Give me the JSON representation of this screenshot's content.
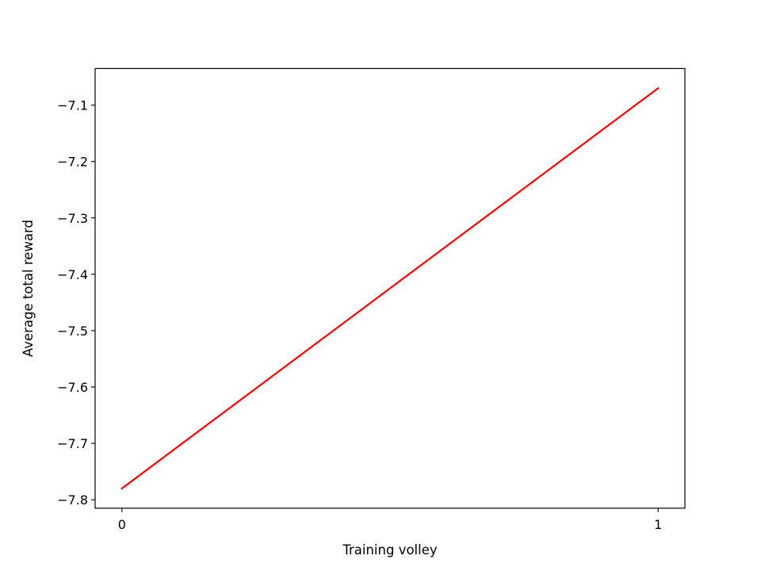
{
  "chart_data": {
    "type": "line",
    "title": "",
    "xlabel": "Training volley",
    "ylabel": "Average total reward",
    "xlim": [
      -0.05,
      1.05
    ],
    "ylim": [
      -7.815,
      -7.035
    ],
    "xticks": [
      0,
      1
    ],
    "xtick_labels": [
      "0",
      "1"
    ],
    "yticks": [
      -7.8,
      -7.7,
      -7.6,
      -7.5,
      -7.4,
      -7.3,
      -7.2,
      -7.1
    ],
    "ytick_labels": [
      "−7.8",
      "−7.7",
      "−7.6",
      "−7.5",
      "−7.4",
      "−7.3",
      "−7.2",
      "−7.1"
    ],
    "grid": false,
    "legend": "none",
    "series": [
      {
        "color": "#ff0000",
        "x": [
          0,
          1
        ],
        "y": [
          -7.78,
          -7.07
        ]
      }
    ]
  }
}
